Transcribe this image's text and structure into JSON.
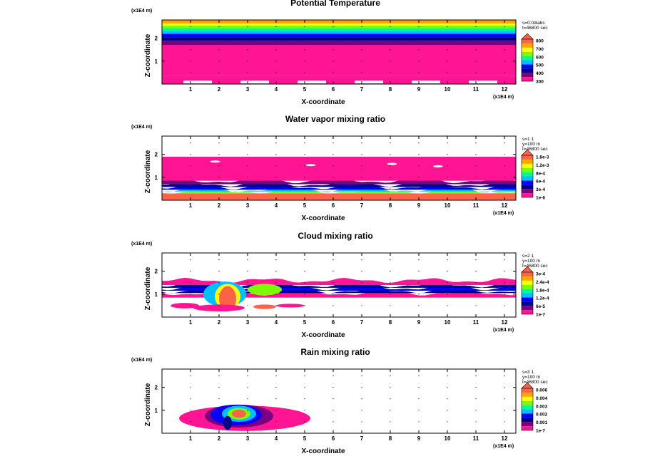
{
  "figure": {
    "unit_label": "(x1E4 m)",
    "xlabel": "X-coordinate",
    "ylabel": "Z-coordinate",
    "x_ticks": [
      "1",
      "2",
      "3",
      "4",
      "5",
      "6",
      "7",
      "8",
      "9",
      "10",
      "11",
      "12"
    ],
    "y_ticks": [
      "1",
      "2"
    ]
  },
  "chart_data": [
    {
      "type": "heatmap",
      "title": "Potential Temperature",
      "xlabel": "X-coordinate",
      "ylabel": "Z-coordinate",
      "unit_label": "(x1E4 m)",
      "xlim": [
        0,
        12.4
      ],
      "ylim": [
        0,
        2.8
      ],
      "info": [
        "s=0:0diabs",
        "t=46800 sec"
      ],
      "levels": [
        "800",
        "700",
        "600",
        "500",
        "400",
        "300"
      ],
      "colors": [
        "#ff1493",
        "#7b0080",
        "#00008b",
        "#0000ff",
        "#00bfff",
        "#00fa9a",
        "#7cfc00",
        "#ffff00",
        "#ffa500",
        "#ff6347"
      ],
      "bands": [
        {
          "z0": 0.0,
          "z1": 0.35,
          "color": "#ff1493",
          "gaps": true
        },
        {
          "z0": 0.35,
          "z1": 1.7,
          "color": "#ff1493"
        },
        {
          "z0": 1.7,
          "z1": 1.9,
          "color": "#7b0080"
        },
        {
          "z0": 1.9,
          "z1": 2.05,
          "color": "#00008b"
        },
        {
          "z0": 2.05,
          "z1": 2.2,
          "color": "#0000ff"
        },
        {
          "z0": 2.2,
          "z1": 2.32,
          "color": "#00bfff"
        },
        {
          "z0": 2.32,
          "z1": 2.45,
          "color": "#00fa9a"
        },
        {
          "z0": 2.45,
          "z1": 2.55,
          "color": "#7cfc00"
        },
        {
          "z0": 2.55,
          "z1": 2.65,
          "color": "#ffff00"
        },
        {
          "z0": 2.65,
          "z1": 2.8,
          "color": "#ffa500"
        }
      ],
      "blobs": []
    },
    {
      "type": "heatmap",
      "title": "Water vapor mixing ratio",
      "xlabel": "X-coordinate",
      "ylabel": "Z-coordinate",
      "unit_label": "(x1E4 m)",
      "xlim": [
        0,
        12.4
      ],
      "ylim": [
        0,
        2.8
      ],
      "info": [
        "s=1 1",
        "y=100 m",
        "t=46800 sec"
      ],
      "levels": [
        "1.8e-3",
        "1.2e-3",
        "8e-4",
        "6e-4",
        "3e-4",
        "1e-6"
      ],
      "colors": [
        "#ff1493",
        "#7b0080",
        "#00008b",
        "#0000ff",
        "#00bfff",
        "#00fa9a",
        "#7cfc00",
        "#ffff00",
        "#ffa500",
        "#ff6347"
      ],
      "bands": [
        {
          "z0": 0.0,
          "z1": 0.3,
          "color": "#ff6347"
        },
        {
          "z0": 0.3,
          "z1": 0.38,
          "color": "#7cfc00",
          "wavy": true
        },
        {
          "z0": 0.38,
          "z1": 0.46,
          "color": "#00bfff",
          "wavy": true
        },
        {
          "z0": 0.46,
          "z1": 0.58,
          "color": "#0000ff",
          "wavy": true
        },
        {
          "z0": 0.58,
          "z1": 0.7,
          "color": "#00008b",
          "wavy": true
        },
        {
          "z0": 0.7,
          "z1": 0.85,
          "color": "#7b0080",
          "wavy": true
        },
        {
          "z0": 0.85,
          "z1": 1.9,
          "color": "#ff1493",
          "holes": true
        }
      ],
      "blobs": []
    },
    {
      "type": "heatmap",
      "title": "Cloud mixing ratio",
      "xlabel": "X-coordinate",
      "ylabel": "Z-coordinate",
      "unit_label": "(x1E4 m)",
      "xlim": [
        0,
        12.4
      ],
      "ylim": [
        0,
        2.8
      ],
      "info": [
        "s=2 1",
        "y=100 m",
        "t=46800 sec"
      ],
      "levels": [
        "3e-4",
        "2.4e-4",
        "1.8e-4",
        "1.2e-4",
        "6e-5",
        "1e-7"
      ],
      "colors": [
        "#ff1493",
        "#7b0080",
        "#00008b",
        "#0000ff",
        "#00bfff",
        "#00fa9a",
        "#7cfc00",
        "#ffff00",
        "#ffa500",
        "#ff6347"
      ],
      "bands": [
        {
          "z0": 0.85,
          "z1": 1.05,
          "color": "#ff1493",
          "wavy": true
        },
        {
          "z0": 1.05,
          "z1": 1.15,
          "color": "#00008b",
          "wavy": true
        },
        {
          "z0": 1.15,
          "z1": 1.28,
          "color": "#0000ff",
          "wavy": true
        },
        {
          "z0": 1.28,
          "z1": 1.4,
          "color": "#00008b",
          "wavy": true
        },
        {
          "z0": 1.4,
          "z1": 1.6,
          "color": "#ff1493",
          "wavy": true
        }
      ],
      "blobs": [
        {
          "x": 2.2,
          "z": 1.0,
          "rx": 0.75,
          "rz": 0.55,
          "color": "#00bfff"
        },
        {
          "x": 2.3,
          "z": 0.9,
          "rx": 0.45,
          "rz": 0.55,
          "color": "#ffff00"
        },
        {
          "x": 2.3,
          "z": 0.8,
          "rx": 0.3,
          "rz": 0.55,
          "color": "#ff6347"
        },
        {
          "x": 3.6,
          "z": 1.2,
          "rx": 0.6,
          "rz": 0.25,
          "color": "#7cfc00"
        },
        {
          "x": 0.8,
          "z": 0.5,
          "rx": 0.5,
          "rz": 0.12,
          "color": "#ff1493"
        },
        {
          "x": 2.0,
          "z": 0.4,
          "rx": 0.9,
          "rz": 0.15,
          "color": "#ff1493"
        },
        {
          "x": 3.6,
          "z": 0.45,
          "rx": 0.4,
          "rz": 0.1,
          "color": "#ff6347"
        },
        {
          "x": 4.5,
          "z": 0.5,
          "rx": 0.5,
          "rz": 0.08,
          "color": "#ff1493"
        }
      ]
    },
    {
      "type": "heatmap",
      "title": "Rain mixing ratio",
      "xlabel": "X-coordinate",
      "ylabel": "Z-coordinate",
      "unit_label": "(x1E4 m)",
      "xlim": [
        0,
        12.4
      ],
      "ylim": [
        0,
        2.8
      ],
      "info": [
        "s=3 1",
        "y=100 m",
        "t=46800 sec"
      ],
      "levels": [
        "0.006",
        "0.004",
        "0.003",
        "0.002",
        "0.001",
        "1e-7"
      ],
      "colors": [
        "#ff1493",
        "#7b0080",
        "#00008b",
        "#0000ff",
        "#00bfff",
        "#00fa9a",
        "#7cfc00",
        "#ffff00",
        "#ffa500",
        "#ff6347"
      ],
      "bands": [],
      "blobs": [
        {
          "x": 2.9,
          "z": 0.65,
          "rx": 2.3,
          "rz": 0.55,
          "color": "#ff1493"
        },
        {
          "x": 2.7,
          "z": 0.75,
          "rx": 1.2,
          "rz": 0.5,
          "color": "#7b0080"
        },
        {
          "x": 2.6,
          "z": 0.8,
          "rx": 0.9,
          "rz": 0.45,
          "color": "#0000ff"
        },
        {
          "x": 2.7,
          "z": 0.85,
          "rx": 0.6,
          "rz": 0.35,
          "color": "#00bfff"
        },
        {
          "x": 2.7,
          "z": 0.85,
          "rx": 0.4,
          "rz": 0.25,
          "color": "#7cfc00"
        },
        {
          "x": 2.7,
          "z": 0.85,
          "rx": 0.25,
          "rz": 0.18,
          "color": "#ff6347"
        },
        {
          "x": 2.3,
          "z": 0.45,
          "rx": 0.15,
          "rz": 0.3,
          "color": "#00008b"
        }
      ]
    }
  ]
}
